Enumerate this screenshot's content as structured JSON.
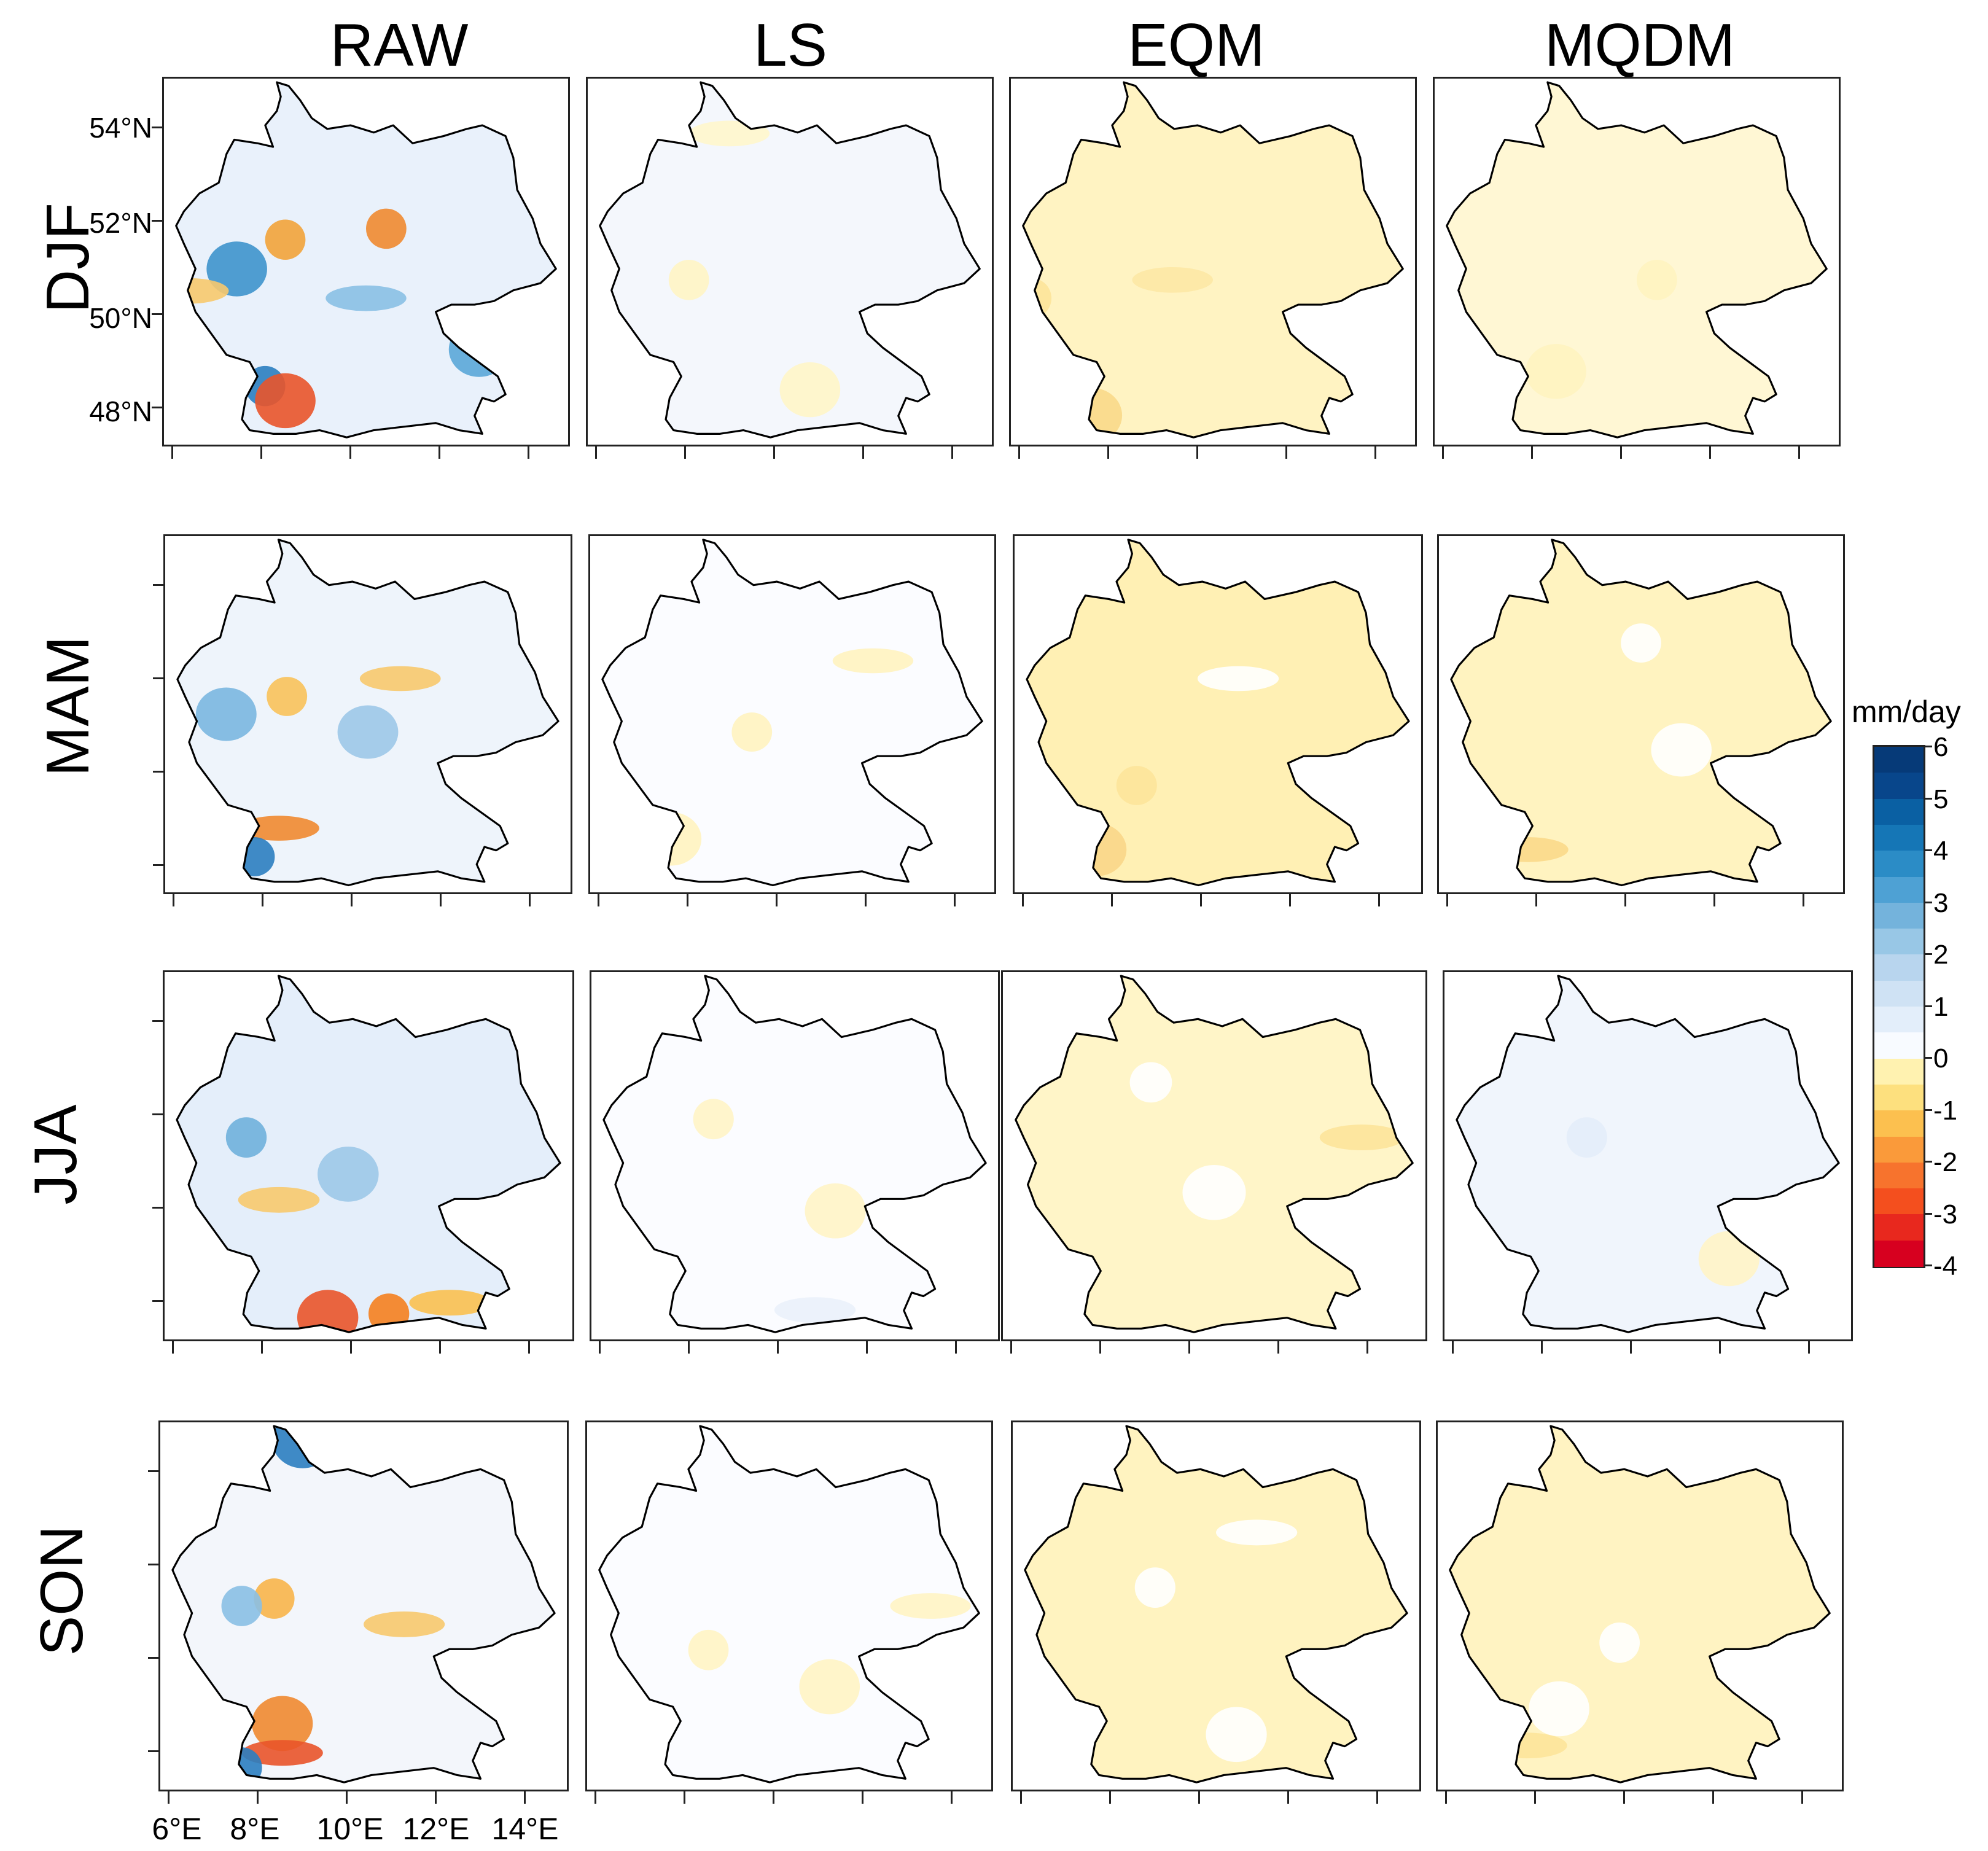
{
  "columns": [
    "RAW",
    "LS",
    "EQM",
    "MQDM"
  ],
  "rows": [
    "DJF",
    "MAM",
    "JJA",
    "SON"
  ],
  "lat_labels": [
    "54°N",
    "52°N",
    "50°N",
    "48°N"
  ],
  "lon_labels": [
    "6°E",
    "8°E",
    "10°E",
    "12°E",
    "14°E"
  ],
  "colorbar": {
    "unit": "mm/day",
    "labels": [
      "6",
      "5",
      "4",
      "3",
      "2",
      "1",
      "0",
      "-1",
      "-2",
      "-3",
      "-4"
    ],
    "min": -4,
    "max": 6,
    "colors": [
      "#d7001f",
      "#e8281e",
      "#f44f1e",
      "#f7732d",
      "#fa9a3a",
      "#fcc04f",
      "#fde07e",
      "#fff2b0",
      "#f8fbff",
      "#e3eefa",
      "#cfe2f4",
      "#b8d5ee",
      "#98c7e6",
      "#74b3dc",
      "#4ea1d4",
      "#2b8cc6",
      "#1576b6",
      "#0a60a3",
      "#08468b",
      "#063a78"
    ]
  },
  "panels": [
    {
      "row": "DJF",
      "col": "RAW",
      "fill": "#e9f1fb",
      "dominant": "bias mixed",
      "features": [
        [
          "#f2a33a",
          0.3,
          0.44
        ],
        [
          "#3e93cc",
          0.18,
          0.52
        ],
        [
          "#f7c96d",
          0.06,
          0.58
        ],
        [
          "#2b7ec0",
          0.25,
          0.84
        ],
        [
          "#e9542a",
          0.3,
          0.88
        ],
        [
          "#89c0e4",
          0.5,
          0.6
        ],
        [
          "#f08a30",
          0.55,
          0.41
        ],
        [
          "#5ba7d8",
          0.78,
          0.74
        ]
      ]
    },
    {
      "row": "DJF",
      "col": "LS",
      "fill": "#f4f7fc",
      "dominant": "near zero",
      "features": [
        [
          "#fff4c4",
          0.25,
          0.55
        ],
        [
          "#fff5c8",
          0.55,
          0.85
        ],
        [
          "#fff6cc",
          0.35,
          0.15
        ]
      ]
    },
    {
      "row": "DJF",
      "col": "EQM",
      "fill": "#fff3c2",
      "dominant": "slight dry",
      "features": [
        [
          "#fde49a",
          0.05,
          0.6
        ],
        [
          "#fad98a",
          0.2,
          0.92
        ],
        [
          "#fde8a5",
          0.4,
          0.55
        ]
      ]
    },
    {
      "row": "DJF",
      "col": "MQDM",
      "fill": "#fff7d4",
      "dominant": "near zero",
      "features": [
        [
          "#fff3c0",
          0.55,
          0.55
        ],
        [
          "#fff3c0",
          0.3,
          0.8
        ]
      ]
    },
    {
      "row": "MAM",
      "col": "RAW",
      "fill": "#eef4fb",
      "dominant": "bias mixed",
      "features": [
        [
          "#f8c25a",
          0.3,
          0.45
        ],
        [
          "#7ab7e0",
          0.15,
          0.5
        ],
        [
          "#f08a30",
          0.28,
          0.82
        ],
        [
          "#2b7ec0",
          0.22,
          0.9
        ],
        [
          "#9cc8e8",
          0.5,
          0.55
        ],
        [
          "#f7c96d",
          0.58,
          0.4
        ]
      ]
    },
    {
      "row": "MAM",
      "col": "LS",
      "fill": "#fbfcff",
      "dominant": "near zero",
      "features": [
        [
          "#fff3c0",
          0.4,
          0.55
        ],
        [
          "#fff3c0",
          0.2,
          0.85
        ],
        [
          "#fff3c0",
          0.7,
          0.35
        ]
      ]
    },
    {
      "row": "MAM",
      "col": "EQM",
      "fill": "#fff0b4",
      "dominant": "slight dry",
      "features": [
        [
          "#fde49a",
          0.3,
          0.7
        ],
        [
          "#f9d688",
          0.2,
          0.88
        ],
        [
          "#ffffff",
          0.55,
          0.4
        ]
      ]
    },
    {
      "row": "MAM",
      "col": "MQDM",
      "fill": "#fff3c0",
      "dominant": "slight dry",
      "features": [
        [
          "#ffffff",
          0.5,
          0.3
        ],
        [
          "#ffffff",
          0.6,
          0.6
        ],
        [
          "#fbd98a",
          0.22,
          0.88
        ]
      ]
    },
    {
      "row": "JJA",
      "col": "RAW",
      "fill": "#e4eefa",
      "dominant": "wet bias, dry alps",
      "features": [
        [
          "#f4801f",
          0.55,
          0.93
        ],
        [
          "#e9542a",
          0.4,
          0.94
        ],
        [
          "#f9c050",
          0.7,
          0.9
        ],
        [
          "#6fb0dc",
          0.2,
          0.45
        ],
        [
          "#9cc8e8",
          0.45,
          0.55
        ],
        [
          "#f7c96d",
          0.28,
          0.62
        ]
      ]
    },
    {
      "row": "JJA",
      "col": "LS",
      "fill": "#fbfcff",
      "dominant": "near zero",
      "features": [
        [
          "#fff4c6",
          0.3,
          0.4
        ],
        [
          "#fff4c6",
          0.6,
          0.65
        ],
        [
          "#eaf1fb",
          0.55,
          0.92
        ]
      ]
    },
    {
      "row": "JJA",
      "col": "EQM",
      "fill": "#fff5c8",
      "dominant": "slight dry",
      "features": [
        [
          "#ffffff",
          0.35,
          0.3
        ],
        [
          "#ffffff",
          0.5,
          0.6
        ],
        [
          "#fde49a",
          0.85,
          0.45
        ]
      ]
    },
    {
      "row": "JJA",
      "col": "MQDM",
      "fill": "#f0f5fc",
      "dominant": "near zero",
      "features": [
        [
          "#e3edf9",
          0.35,
          0.45
        ],
        [
          "#fff4c6",
          0.7,
          0.78
        ]
      ]
    },
    {
      "row": "SON",
      "col": "RAW",
      "fill": "#f3f6fb",
      "dominant": "bias mixed",
      "features": [
        [
          "#f8b54a",
          0.28,
          0.48
        ],
        [
          "#f08a30",
          0.3,
          0.82
        ],
        [
          "#e9542a",
          0.3,
          0.9
        ],
        [
          "#2b7ec0",
          0.2,
          0.94
        ],
        [
          "#2b7ec0",
          0.35,
          0.05
        ],
        [
          "#f7c96d",
          0.6,
          0.55
        ],
        [
          "#89c0e4",
          0.2,
          0.5
        ]
      ]
    },
    {
      "row": "SON",
      "col": "LS",
      "fill": "#fbfcff",
      "dominant": "near zero",
      "features": [
        [
          "#fff4c4",
          0.3,
          0.62
        ],
        [
          "#fff4c4",
          0.6,
          0.72
        ],
        [
          "#fff4c4",
          0.85,
          0.5
        ]
      ]
    },
    {
      "row": "SON",
      "col": "EQM",
      "fill": "#fff3c0",
      "dominant": "slight dry",
      "features": [
        [
          "#ffffff",
          0.35,
          0.45
        ],
        [
          "#ffffff",
          0.55,
          0.85
        ],
        [
          "#ffffff",
          0.6,
          0.3
        ]
      ]
    },
    {
      "row": "SON",
      "col": "MQDM",
      "fill": "#fff3c2",
      "dominant": "slight dry",
      "features": [
        [
          "#ffffff",
          0.45,
          0.6
        ],
        [
          "#ffffff",
          0.3,
          0.78
        ],
        [
          "#fde49a",
          0.22,
          0.88
        ]
      ]
    }
  ]
}
